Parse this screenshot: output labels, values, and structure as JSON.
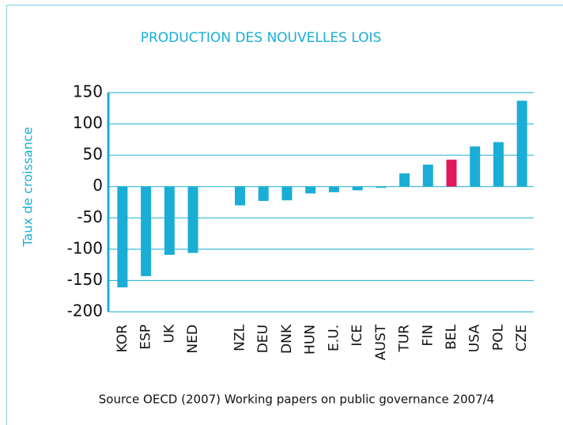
{
  "chart_data": {
    "type": "bar",
    "title": "PRODUCTION DES NOUVELLES LOIS",
    "y_label": "Taux de croissance",
    "source": "Source OECD (2007) Working papers on public governance 2007/4",
    "categories": [
      "KOR",
      "ESP",
      "UK",
      "NED",
      null,
      "NZL",
      "DEU",
      "DNK",
      "HUN",
      "E.U.",
      "ICE",
      "AUST",
      "TUR",
      "FIN",
      "BEL",
      "USA",
      "POL",
      "CZE"
    ],
    "values": [
      -161,
      -143,
      -109,
      -106,
      null,
      -30,
      -23,
      -22,
      -11,
      -9,
      -6,
      -2,
      21,
      35,
      43,
      64,
      71,
      137
    ],
    "colors": [
      "#1aaed6",
      "#1aaed6",
      "#1aaed6",
      "#1aaed6",
      null,
      "#1aaed6",
      "#1aaed6",
      "#1aaed6",
      "#1aaed6",
      "#1aaed6",
      "#1aaed6",
      "#1aaed6",
      "#1aaed6",
      "#1aaed6",
      "#e0195a",
      "#1aaed6",
      "#1aaed6",
      "#1aaed6"
    ],
    "ylim": [
      -200,
      150
    ],
    "yticks": [
      150,
      100,
      50,
      0,
      -50,
      -100,
      -150,
      -200
    ],
    "grid": true
  }
}
